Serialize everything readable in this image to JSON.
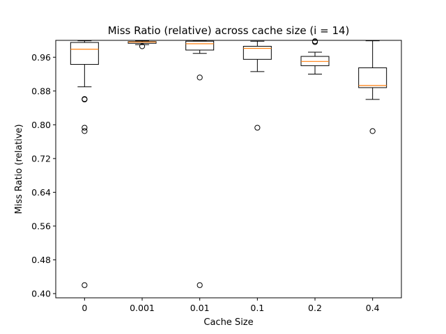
{
  "chart_data": {
    "type": "box",
    "title": "Miss Ratio (relative) across cache size (i = 14)",
    "xlabel": "Cache Size",
    "ylabel": "Miss Ratio (relative)",
    "ylim": [
      0.39,
      1.0
    ],
    "yticks": [
      "0.40",
      "0.48",
      "0.56",
      "0.64",
      "0.72",
      "0.80",
      "0.88",
      "0.96"
    ],
    "categories": [
      "0",
      "0.001",
      "0.01",
      "0.1",
      "0.2",
      "0.4"
    ],
    "grid": false,
    "colors": {
      "box": "#000000",
      "median": "#ff7f0e",
      "outlier": "#000000"
    },
    "boxes": [
      {
        "category": "0",
        "whisker_low": 0.89,
        "q1": 0.943,
        "median": 0.979,
        "q3": 0.995,
        "whisker_high": 0.999,
        "outliers": [
          0.861,
          0.86,
          0.793,
          0.785,
          0.42
        ]
      },
      {
        "category": "0.001",
        "whisker_low": 0.99,
        "q1": 0.993,
        "median": 0.996,
        "q3": 0.997,
        "whisker_high": 0.999,
        "outliers": [
          0.986
        ]
      },
      {
        "category": "0.01",
        "whisker_low": 0.969,
        "q1": 0.977,
        "median": 0.992,
        "q3": 0.998,
        "whisker_high": 0.999,
        "outliers": [
          0.912,
          0.42
        ]
      },
      {
        "category": "0.1",
        "whisker_low": 0.926,
        "q1": 0.955,
        "median": 0.981,
        "q3": 0.986,
        "whisker_high": 0.998,
        "outliers": [
          0.793
        ]
      },
      {
        "category": "0.2",
        "whisker_low": 0.92,
        "q1": 0.94,
        "median": 0.95,
        "q3": 0.962,
        "whisker_high": 0.972,
        "outliers": [
          0.998,
          0.996
        ]
      },
      {
        "category": "0.4",
        "whisker_low": 0.86,
        "q1": 0.888,
        "median": 0.893,
        "q3": 0.935,
        "whisker_high": 0.999,
        "outliers": [
          0.785
        ]
      }
    ]
  }
}
